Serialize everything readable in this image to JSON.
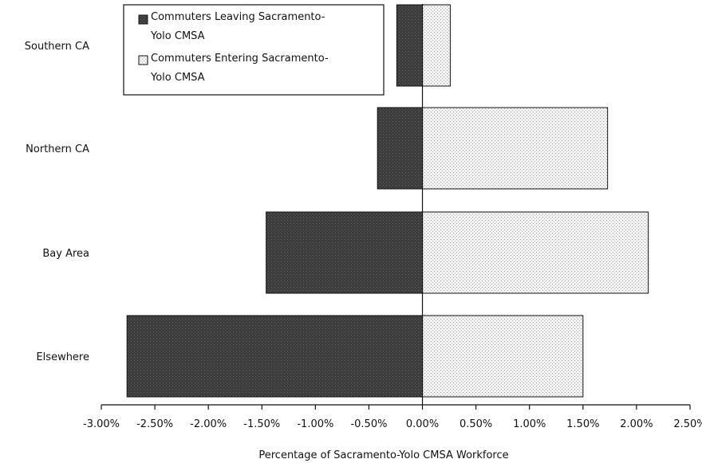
{
  "chart_data": {
    "type": "bar",
    "orientation": "horizontal",
    "categories": [
      "Southern CA",
      "Northern CA",
      "Bay Area",
      "Elsewhere"
    ],
    "series": [
      {
        "name": "Commuters Leaving Sacramento-Yolo CMSA",
        "values": [
          -0.24,
          -0.42,
          -1.46,
          -2.76
        ],
        "color": "#3a3a3a"
      },
      {
        "name": "Commuters Entering Sacramento-Yolo CMSA",
        "values": [
          0.26,
          1.73,
          2.11,
          1.5
        ],
        "color": "#ececec"
      }
    ],
    "xlabel": "Percentage of Sacramento-Yolo CMSA Workforce",
    "ylabel": "",
    "xlim": [
      -3.0,
      2.5
    ],
    "xticks": [
      -3.0,
      -2.5,
      -2.0,
      -1.5,
      -1.0,
      -0.5,
      0.0,
      0.5,
      1.0,
      1.5,
      2.0,
      2.5
    ],
    "xtick_labels": [
      "-3.00%",
      "-2.50%",
      "-2.00%",
      "-1.50%",
      "-1.00%",
      "-0.50%",
      "0.00%",
      "0.50%",
      "1.00%",
      "1.50%",
      "2.00%",
      "2.50%"
    ],
    "grid": false,
    "legend_position": "top-left",
    "legend_labels": [
      [
        "Commuters Leaving Sacramento-",
        "Yolo CMSA"
      ],
      [
        "Commuters Entering Sacramento-",
        "Yolo CMSA"
      ]
    ]
  }
}
